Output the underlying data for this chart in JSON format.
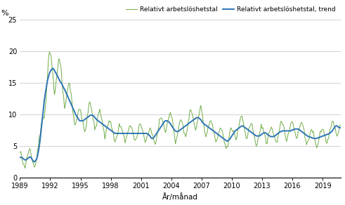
{
  "ylabel": "%",
  "xlabel": "År/månad",
  "ylim": [
    0,
    25
  ],
  "yticks": [
    0,
    5,
    10,
    15,
    20,
    25
  ],
  "xticks": [
    1989,
    1992,
    1995,
    1998,
    2001,
    2004,
    2007,
    2010,
    2013,
    2016,
    2019
  ],
  "line1_label": "Relativt arbetslöshetstal",
  "line2_label": "Relativt arbetslöshetstal, trend",
  "line1_color": "#70ad47",
  "line2_color": "#2e75b6",
  "background_color": "#ffffff",
  "grid_color": "#bfbfbf",
  "trend_values": [
    3.2,
    3.2,
    3.2,
    3.1,
    3.0,
    2.9,
    2.8,
    2.8,
    2.9,
    3.0,
    3.1,
    3.2,
    3.3,
    3.2,
    3.0,
    2.8,
    2.6,
    2.5,
    2.6,
    2.8,
    3.0,
    3.5,
    4.2,
    5.0,
    6.0,
    7.2,
    8.5,
    9.8,
    11.0,
    12.2,
    13.2,
    14.0,
    14.8,
    15.5,
    16.0,
    16.5,
    16.8,
    17.0,
    17.2,
    17.3,
    17.2,
    17.0,
    16.7,
    16.5,
    16.3,
    16.0,
    15.7,
    15.4,
    15.2,
    15.0,
    14.8,
    14.5,
    14.2,
    14.0,
    13.7,
    13.4,
    13.1,
    12.8,
    12.5,
    12.2,
    11.9,
    11.6,
    11.3,
    11.0,
    10.7,
    10.4,
    10.1,
    9.8,
    9.6,
    9.4,
    9.2,
    9.0,
    9.0,
    9.0,
    9.0,
    9.0,
    9.1,
    9.2,
    9.3,
    9.4,
    9.5,
    9.6,
    9.7,
    9.8,
    9.9,
    9.9,
    9.9,
    9.8,
    9.7,
    9.5,
    9.4,
    9.2,
    9.1,
    9.0,
    8.9,
    8.8,
    8.7,
    8.6,
    8.5,
    8.4,
    8.3,
    8.2,
    8.1,
    8.0,
    7.9,
    7.8,
    7.7,
    7.6,
    7.5,
    7.4,
    7.3,
    7.2,
    7.1,
    7.0,
    7.0,
    7.0,
    7.0,
    7.0,
    7.0,
    7.0,
    7.0,
    7.0,
    7.0,
    7.0,
    7.0,
    7.0,
    7.0,
    7.0,
    7.0,
    7.0,
    7.0,
    7.0,
    7.0,
    7.0,
    7.0,
    7.0,
    7.0,
    7.0,
    7.0,
    7.0,
    7.0,
    7.0,
    7.0,
    7.0,
    7.0,
    7.0,
    7.0,
    7.0,
    7.0,
    7.0,
    7.0,
    7.0,
    6.9,
    6.8,
    6.7,
    6.5,
    6.3,
    6.2,
    6.2,
    6.3,
    6.5,
    6.7,
    6.9,
    7.1,
    7.3,
    7.5,
    7.7,
    7.9,
    8.1,
    8.3,
    8.5,
    8.7,
    8.9,
    9.0,
    9.0,
    9.0,
    8.9,
    8.8,
    8.7,
    8.5,
    8.3,
    8.1,
    7.9,
    7.7,
    7.5,
    7.4,
    7.3,
    7.3,
    7.3,
    7.4,
    7.5,
    7.6,
    7.7,
    7.8,
    7.9,
    8.0,
    8.1,
    8.2,
    8.3,
    8.4,
    8.5,
    8.6,
    8.7,
    8.8,
    8.9,
    9.0,
    9.1,
    9.2,
    9.3,
    9.4,
    9.5,
    9.5,
    9.5,
    9.4,
    9.3,
    9.2,
    9.0,
    8.8,
    8.6,
    8.5,
    8.4,
    8.3,
    8.2,
    8.1,
    8.0,
    7.9,
    7.8,
    7.7,
    7.6,
    7.5,
    7.4,
    7.3,
    7.2,
    7.1,
    7.0,
    6.9,
    6.8,
    6.7,
    6.6,
    6.5,
    6.4,
    6.3,
    6.2,
    6.1,
    6.0,
    5.9,
    5.8,
    5.8,
    5.9,
    6.0,
    6.2,
    6.4,
    6.6,
    6.8,
    7.0,
    7.2,
    7.4,
    7.5,
    7.6,
    7.7,
    7.8,
    7.9,
    8.0,
    8.1,
    8.2,
    8.2,
    8.1,
    8.0,
    7.9,
    7.8,
    7.7,
    7.6,
    7.5,
    7.4,
    7.3,
    7.2,
    7.1,
    7.0,
    6.9,
    6.8,
    6.7,
    6.6,
    6.6,
    6.6,
    6.6,
    6.6,
    6.7,
    6.8,
    6.9,
    7.0,
    7.1,
    7.1,
    7.1,
    7.0,
    6.9,
    6.8,
    6.7,
    6.6,
    6.5,
    6.5,
    6.5,
    6.5,
    6.5,
    6.6,
    6.7,
    6.8,
    6.9,
    7.0,
    7.1,
    7.2,
    7.3,
    7.3,
    7.4,
    7.4,
    7.4,
    7.4,
    7.4,
    7.4,
    7.4,
    7.4,
    7.4,
    7.4,
    7.4,
    7.5,
    7.5,
    7.6,
    7.6,
    7.7,
    7.7,
    7.7,
    7.7,
    7.7,
    7.6,
    7.5,
    7.4,
    7.3,
    7.2,
    7.1,
    7.0,
    6.9,
    6.8,
    6.7,
    6.6,
    6.5,
    6.5,
    6.4,
    6.4,
    6.3,
    6.3,
    6.2,
    6.2,
    6.2,
    6.2,
    6.2,
    6.3,
    6.3,
    6.4,
    6.4,
    6.5,
    6.5,
    6.6,
    6.6,
    6.7,
    6.7,
    6.8,
    6.8,
    6.9,
    6.9,
    7.0,
    7.1,
    7.2,
    7.3,
    7.5,
    7.7,
    7.9,
    8.1,
    8.2,
    8.2,
    8.1,
    8.0,
    7.9,
    7.9
  ]
}
